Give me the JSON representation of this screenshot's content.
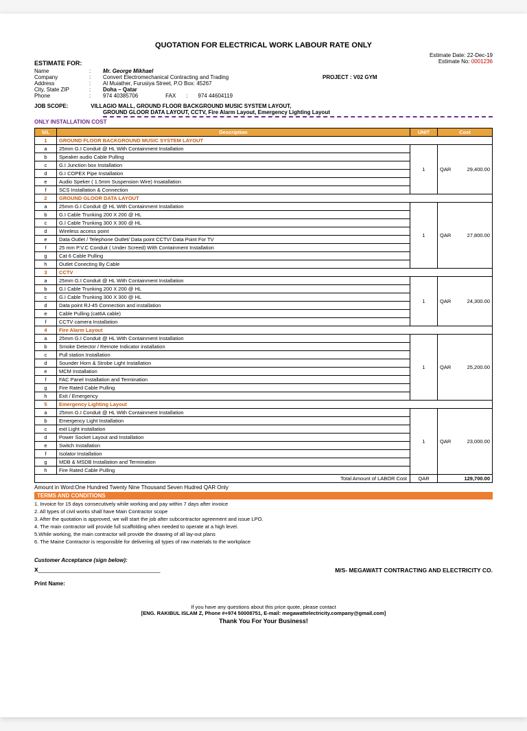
{
  "title": "QUOTATION FOR ELECTRICAL WORK LABOUR RATE ONLY",
  "estimate_date_label": "Estimate Date:",
  "estimate_date": "22-Dec-19",
  "estimate_no_label": "Estimate No:",
  "estimate_no": "0001236",
  "estimate_for": "ESTIMATE FOR:",
  "client": {
    "name_label": "Name",
    "name": "Mr. George Mikhael",
    "company_label": "Company",
    "company": "Convert Electromechanical Contracting and Trading",
    "address_label": "Address",
    "address": "Al Muiather, Furusiya Street, P.O Box: 45267",
    "city_label": "City, State ZIP",
    "city": "Doha – Qatar",
    "phone_label": "Phone",
    "phone": "974 40385706",
    "fax_label": "FAX",
    "fax": "974 44604119",
    "project_label": "PROJECT :",
    "project": "V02 GYM"
  },
  "job_scope_label": "JOB SCOPE:",
  "job_scope_1": "VILLAGIO MALL, GROUND FLOOR BACKGROUND MUSIC SYSTEM LAYOUT,",
  "job_scope_2": "GROUND GLOOR DATA LAYOUT, CCTV, Fire Alarm Layout, Emergency Lighting Layout",
  "only_install": "ONLY INSTALLATION COST",
  "headers": {
    "sl": "S/L",
    "desc": "Description",
    "unit": "UNIT",
    "cost": "Cost"
  },
  "sections": [
    {
      "num": "1",
      "title": "GROUND FLOOR BACKGROUND MUSIC SYSTEM LAYOUT",
      "rows": [
        {
          "k": "a",
          "d": "25mm G.I Conduit @ HL With Containment Installation"
        },
        {
          "k": "b",
          "d": "Speaker audio Cable Pulling"
        },
        {
          "k": "c",
          "d": "G.I Junction box Installation"
        },
        {
          "k": "d",
          "d": "G.I COPEX Pipe Installation"
        },
        {
          "k": "e",
          "d": "Audio Speker ( 1.5mm Suspension Wire) Insatallation"
        },
        {
          "k": "f",
          "d": "SCS Installation & Connection"
        }
      ],
      "unit": "1",
      "unit_label": "QAR",
      "cost": "29,400.00"
    },
    {
      "num": "2",
      "title": "GROUND GLOOR DATA LAYOUT",
      "rows": [
        {
          "k": "a",
          "d": "25mm G.I Conduit @ HL With Containment Installation"
        },
        {
          "k": "b",
          "d": "G.I Cable Trunking 200 X 200 @ HL"
        },
        {
          "k": "c",
          "d": "G.I Cable Trunking 300 X 300 @ HL"
        },
        {
          "k": "d",
          "d": "Wireless access point"
        },
        {
          "k": "e",
          "d": "Data Outlet / Telephone Outlet/ Data point CCTV/ Data Point For TV"
        },
        {
          "k": "f",
          "d": "25 mm P.V.C Conduit ( Under Screed) With Containment Installation"
        },
        {
          "k": "g",
          "d": "Cat 6 Cable Pulling"
        },
        {
          "k": "h",
          "d": "Outlet Conecting By Cable"
        }
      ],
      "unit": "1",
      "unit_label": "QAR",
      "cost": "27,800.00"
    },
    {
      "num": "3",
      "title": "CCTV",
      "rows": [
        {
          "k": "a",
          "d": "25mm G.I Conduit @ HL With Containment Installation"
        },
        {
          "k": "b",
          "d": "G.I Cable Trunking 200 X 200 @ HL"
        },
        {
          "k": "c",
          "d": "G.I Cable Trunking 300 X 300 @ HL"
        },
        {
          "k": "d",
          "d": "Data point RJ-45 Connection and installation"
        },
        {
          "k": "e",
          "d": "Cable Pulling (cat6A cable)"
        },
        {
          "k": "f",
          "d": "CCTV camera Installation"
        }
      ],
      "unit": "1",
      "unit_label": "QAR",
      "cost": "24,300.00"
    },
    {
      "num": "4",
      "title": "Fire Alarm Layout",
      "rows": [
        {
          "k": "a",
          "d": "25mm G.I Conduit @ HL With Containment Installation"
        },
        {
          "k": "b",
          "d": "Smoke Detector / Remote Indicator installation"
        },
        {
          "k": "c",
          "d": "Pull station Installation"
        },
        {
          "k": "d",
          "d": "Sounder Horn & Strobe Light Installation"
        },
        {
          "k": "e",
          "d": "MCM Installation"
        },
        {
          "k": "f",
          "d": "FAC Panel Installation and Termination"
        },
        {
          "k": "g",
          "d": "Fire Rated Cable Pulling"
        },
        {
          "k": "h",
          "d": "Exit / Emergency"
        }
      ],
      "unit": "1",
      "unit_label": "QAR",
      "cost": "25,200.00"
    },
    {
      "num": "5",
      "title": "Emergency Lighting Layout",
      "rows": [
        {
          "k": "a",
          "d": "25mm G.I Conduit @ HL With Containment Installation"
        },
        {
          "k": "b",
          "d": "Emergency Light Installation"
        },
        {
          "k": "c",
          "d": "exit Light installation"
        },
        {
          "k": "d",
          "d": "Power Socket Layout and Installation"
        },
        {
          "k": "e",
          "d": "Switch Installation"
        },
        {
          "k": "f",
          "d": "Isolator Installation"
        },
        {
          "k": "g",
          "d": "MDB & MSDB Installation and Termination"
        },
        {
          "k": "h",
          "d": "Fire Rated Cable Pulling"
        }
      ],
      "unit": "1",
      "unit_label": "QAR",
      "cost": "23,000.00"
    }
  ],
  "total_label": "Total Amount of LABOR Cost",
  "total_unit": "QAR",
  "total_cost": "129,700.00",
  "amount_word": "Amount in Word:One Hundred Twenty Nine Thousand Seven Hudred QAR Only",
  "terms_head": "TERMS AND CONDITIONS",
  "terms": [
    "1. Invoice for 15 days consecutively while working and pay within 7 days after invoice",
    "2. All types of civil works shall have Main Contractor scope",
    "3. After the quotation is approved, we will start the job after subcontractor agreement and issue LPO.",
    "4. The main contractor will provide full scaffolding when needed to operate at a high level.",
    "5.While working, the main contractor will provide the drawing of all lay-out plans",
    "6. The Maine Contractor is responsible for delivering all types of raw materials to the workplace"
  ],
  "customer_accept": "Customer Acceptance (sign below):",
  "sig_x": "x",
  "sig_line": "________________________________________",
  "company_sig": "M/S- MEGAWATT CONTRACTING AND ELECTRICITY CO.",
  "print_name": "Print Name:",
  "footer": {
    "line1": "If you have any questions about this price quote, please contact",
    "line2": "[ENG. RAKIBUL ISLAM Z, Phone #+974 50008751, E-mail: megawattelectricity.company@gmail.com]",
    "thanks": "Thank You For Your Business!"
  }
}
